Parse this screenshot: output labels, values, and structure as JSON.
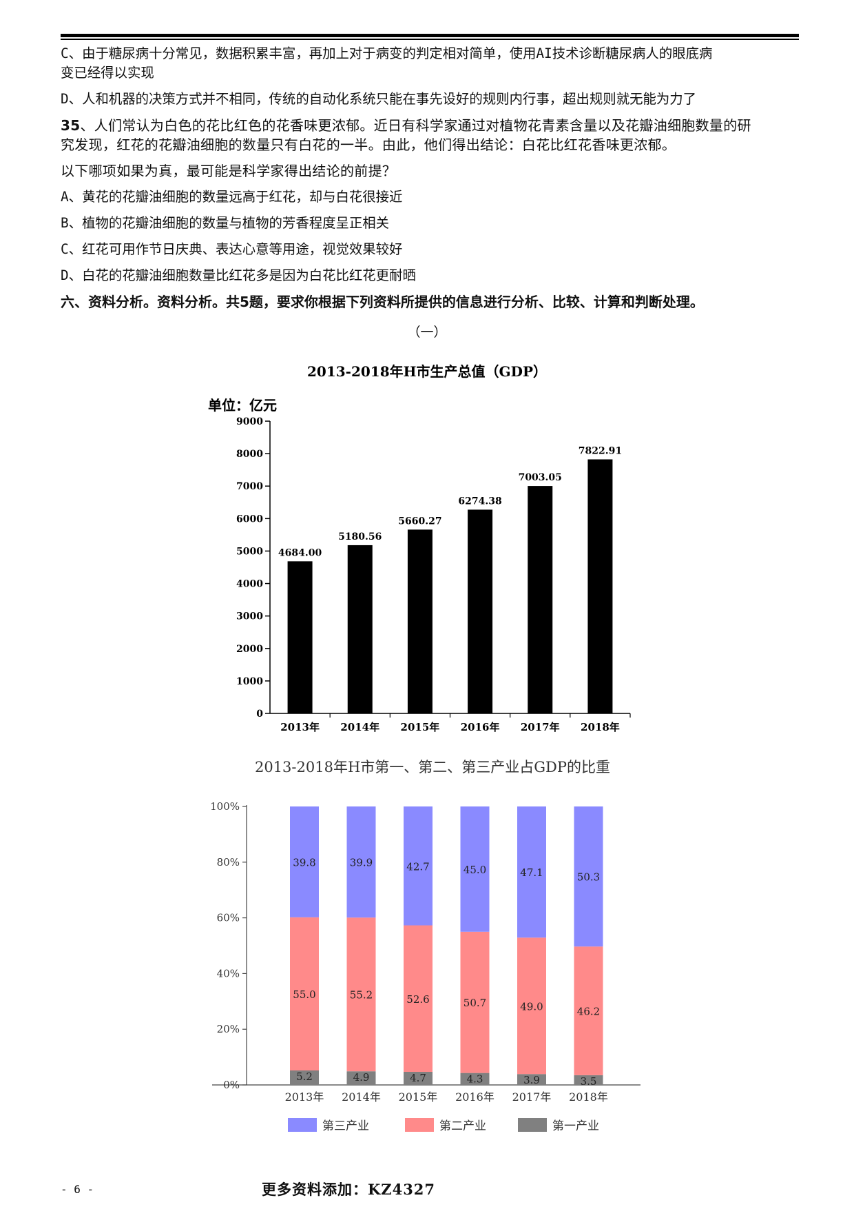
{
  "questions": {
    "prev_option_c_line1": "C、由于糖尿病十分常见，数据积累丰富，再加上对于病变的判定相对简单，使用AI技术诊断糖尿病人的眼底病",
    "prev_option_c_line2": "变已经得以实现",
    "prev_option_d": "D、人和机器的决策方式并不相同，传统的自动化系统只能在事先设好的规则内行事，超出规则就无能为力了",
    "q35_number": "35",
    "q35_line1": "、人们常认为白色的花比红色的花香味更浓郁。近日有科学家通过对植物花青素含量以及花瓣油细胞数量的研",
    "q35_line2": "究发现，红花的花瓣油细胞的数量只有白花的一半。由此，他们得出结论：白花比红花香味更浓郁。",
    "q35_ask": "以下哪项如果为真，最可能是科学家得出结论的前提？",
    "q35_options": [
      "A、黄花的花瓣油细胞的数量远高于红花，却与白花很接近",
      "B、植物的花瓣油细胞的数量与植物的芳香程度呈正相关",
      "C、红花可用作节日庆典、表达心意等用途，视觉效果较好",
      "D、白花的花瓣油细胞数量比红花多是因为白花比红花更耐晒"
    ],
    "section_title": "六、资料分析。资料分析。共5题，要求你根据下列资料所提供的信息进行分析、比较、计算和判断处理。",
    "material_marker": "（一）"
  },
  "chart_data": [
    {
      "type": "bar",
      "title": "2013-2018年H市生产总值（GDP）",
      "ylabel": "单位：亿元",
      "categories": [
        "2013年",
        "2014年",
        "2015年",
        "2016年",
        "2017年",
        "2018年"
      ],
      "values": [
        4684.0,
        5180.56,
        5660.27,
        6274.38,
        7003.05,
        7822.91
      ],
      "value_labels": [
        "4684.00",
        "5180.56",
        "5660.27",
        "6274.38",
        "7003.05",
        "7822.91"
      ],
      "ylim": [
        0,
        9000
      ],
      "yticks": [
        0,
        1000,
        2000,
        3000,
        4000,
        5000,
        6000,
        7000,
        8000,
        9000
      ],
      "bar_color": "#000000",
      "grid": false
    },
    {
      "type": "bar",
      "stacked": true,
      "title": "2013-2018年H市第一、第二、第三产业占GDP的比重",
      "categories": [
        "2013年",
        "2014年",
        "2015年",
        "2016年",
        "2017年",
        "2018年"
      ],
      "series": [
        {
          "name": "第一产业",
          "values": [
            5.2,
            4.9,
            4.7,
            4.3,
            3.9,
            3.5
          ],
          "labels": [
            "5.2",
            "4.9",
            "4.7",
            "4.3",
            "3.9",
            "3.5"
          ],
          "color": "#808080"
        },
        {
          "name": "第二产业",
          "values": [
            55.0,
            55.2,
            52.6,
            50.7,
            49.0,
            46.2
          ],
          "labels": [
            "55.0",
            "55.2",
            "52.6",
            "50.7",
            "49.0",
            "46.2"
          ],
          "color": "#ff8a8a"
        },
        {
          "name": "第三产业",
          "values": [
            39.8,
            39.9,
            42.7,
            45.0,
            47.1,
            50.3
          ],
          "labels": [
            "39.8",
            "39.9",
            "42.7",
            "45.0",
            "47.1",
            "50.3"
          ],
          "color": "#8a8aff"
        }
      ],
      "legend_order": [
        "第三产业",
        "第二产业",
        "第一产业"
      ],
      "ylim": [
        0,
        100
      ],
      "yticks": [
        0,
        20,
        40,
        60,
        80,
        100
      ],
      "ytick_labels": [
        "0%",
        "20%",
        "40%",
        "60%",
        "80%",
        "100%"
      ],
      "legend": "bottom",
      "grid": false
    }
  ],
  "footer": {
    "page_number": "- 6 -",
    "more": "更多资料添加：KZ4327"
  }
}
